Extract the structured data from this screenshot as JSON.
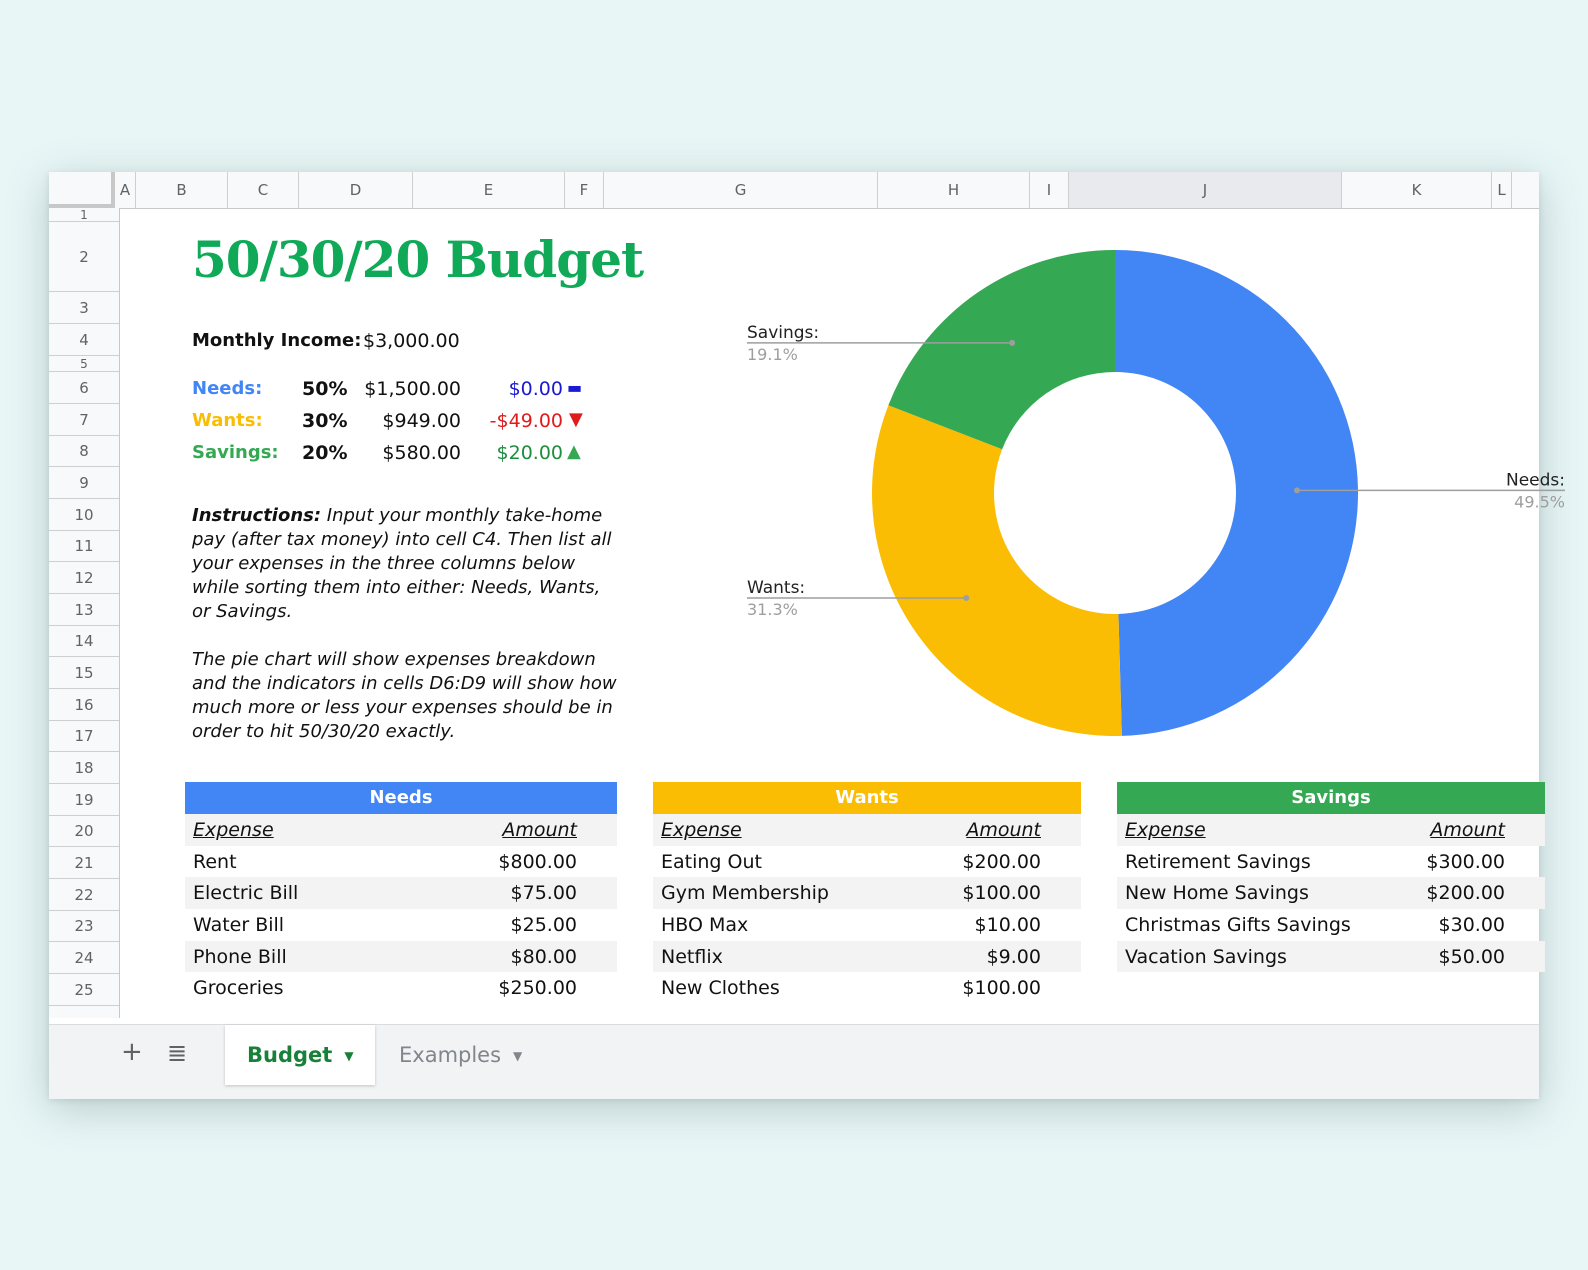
{
  "columns": [
    "A",
    "B",
    "C",
    "D",
    "E",
    "F",
    "G",
    "H",
    "I",
    "J",
    "K",
    "L"
  ],
  "rows": [
    "1",
    "2",
    "3",
    "4",
    "5",
    "6",
    "7",
    "8",
    "9",
    "10",
    "11",
    "12",
    "13",
    "14",
    "15",
    "16",
    "17",
    "18",
    "19",
    "20",
    "21",
    "22",
    "23",
    "24",
    "25"
  ],
  "title": "50/30/20 Budget",
  "income": {
    "label": "Monthly Income:",
    "value": "$3,000.00"
  },
  "categories": [
    {
      "name": "Needs:",
      "pct": "50%",
      "amount": "$1,500.00",
      "delta": "$0.00",
      "indicator": "▬",
      "color": "#4285f4",
      "delta_color": "#1a1ad4",
      "indicator_color": "#1a1ad4"
    },
    {
      "name": "Wants:",
      "pct": "30%",
      "amount": "$949.00",
      "delta": "-$49.00",
      "indicator": "▼",
      "color": "#fbbc04",
      "delta_color": "#e01b1b",
      "indicator_color": "#e01b1b"
    },
    {
      "name": "Savings:",
      "pct": "20%",
      "amount": "$580.00",
      "delta": "$20.00",
      "indicator": "▲",
      "color": "#34a853",
      "delta_color": "#1e8e3e",
      "indicator_color": "#34a853"
    }
  ],
  "instructions": {
    "lead": "Instructions:",
    "p1": " Input your monthly take-home pay (after tax money) into cell C4. Then list all your expenses in the three columns below while sorting them into either: Needs, Wants, or Savings.",
    "p2": "The pie chart will show expenses breakdown and the indicators in cells D6:D9 will show how much more or less your expenses should be in order to hit 50/30/20 exactly."
  },
  "chart_data": {
    "type": "pie",
    "donut": true,
    "title": "",
    "slices": [
      {
        "label": "Needs:",
        "value": 49.5,
        "display": "49.5%",
        "color": "#4285f4"
      },
      {
        "label": "Wants:",
        "value": 31.3,
        "display": "31.3%",
        "color": "#fbbc04"
      },
      {
        "label": "Savings:",
        "value": 19.1,
        "display": "19.1%",
        "color": "#34a853"
      }
    ]
  },
  "tables": [
    {
      "title": "Needs",
      "color": "#4285f4",
      "col1": "Expense",
      "col2": "Amount",
      "rows": [
        [
          "Rent",
          "$800.00"
        ],
        [
          "Electric Bill",
          "$75.00"
        ],
        [
          "Water Bill",
          "$25.00"
        ],
        [
          "Phone Bill",
          "$80.00"
        ],
        [
          "Groceries",
          "$250.00"
        ]
      ]
    },
    {
      "title": "Wants",
      "color": "#fbbc04",
      "col1": "Expense",
      "col2": "Amount",
      "rows": [
        [
          "Eating Out",
          "$200.00"
        ],
        [
          "Gym Membership",
          "$100.00"
        ],
        [
          "HBO Max",
          "$10.00"
        ],
        [
          "Netflix",
          "$9.00"
        ],
        [
          "New Clothes",
          "$100.00"
        ]
      ]
    },
    {
      "title": "Savings",
      "color": "#34a853",
      "col1": "Expense",
      "col2": "Amount",
      "rows": [
        [
          "Retirement Savings",
          "$300.00"
        ],
        [
          "New Home Savings",
          "$200.00"
        ],
        [
          "Christmas Gifts Savings",
          "$30.00"
        ],
        [
          "Vacation Savings",
          "$50.00"
        ]
      ]
    }
  ],
  "tabs": {
    "add_icon": "+",
    "list_icon": "≣",
    "active": "Budget",
    "inactive": "Examples",
    "caret": "▼"
  }
}
